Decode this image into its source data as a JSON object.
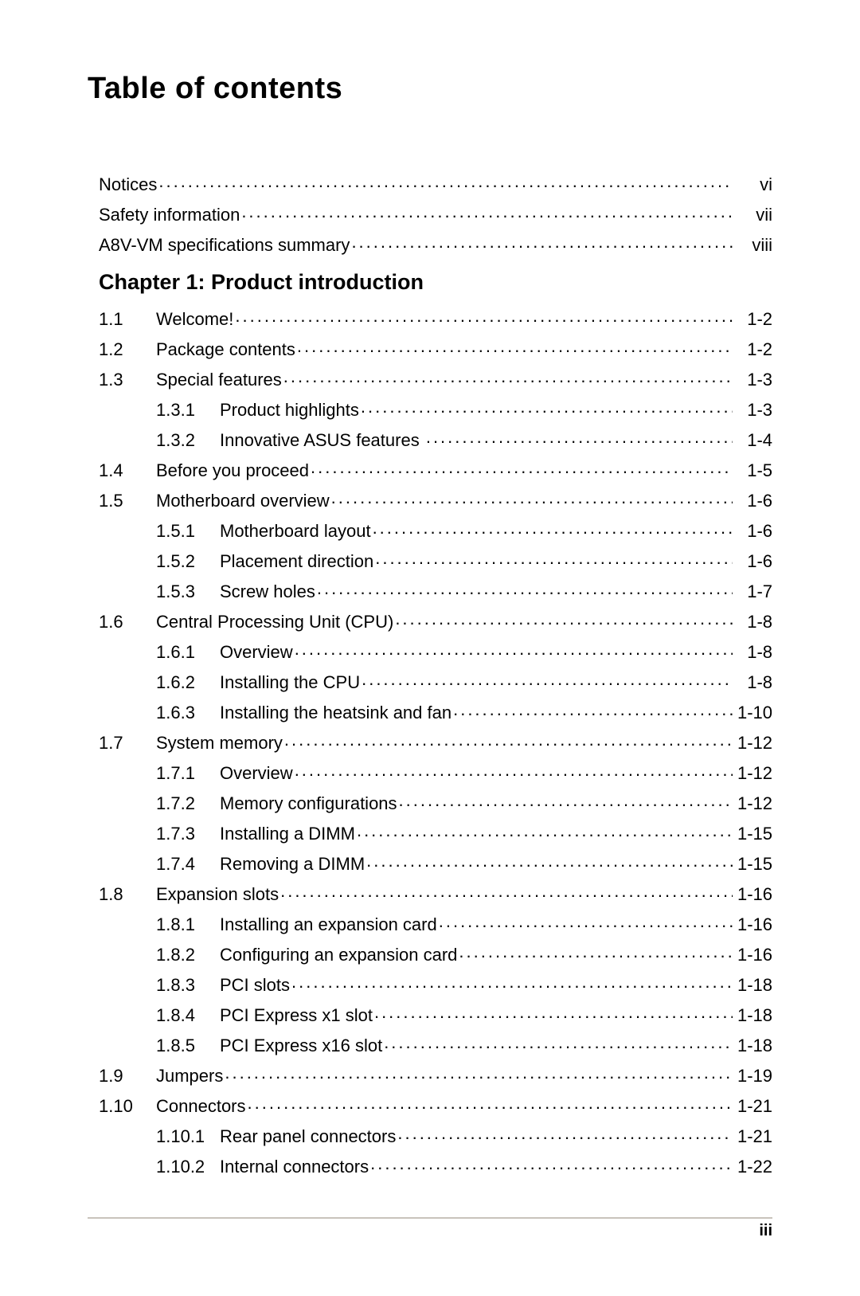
{
  "title": "Table of contents",
  "page_number": "iii",
  "colors": {
    "text": "#000000",
    "background": "#ffffff",
    "rule": "#c9c3bb"
  },
  "typography": {
    "title_fontsize_pt": 28,
    "heading_fontsize_pt": 20,
    "body_fontsize_pt": 16,
    "font_family": "Arial"
  },
  "front_matter": [
    {
      "title": "Notices",
      "page": "vi"
    },
    {
      "title": "Safety information",
      "page": "vii"
    },
    {
      "title": "A8V-VM specifications summary",
      "page": "viii"
    }
  ],
  "chapter": {
    "heading": "Chapter 1: Product introduction",
    "entries": [
      {
        "num": "1.1",
        "title": "Welcome!",
        "page": "1-2"
      },
      {
        "num": "1.2",
        "title": "Package contents",
        "page": "1-2"
      },
      {
        "num": "1.3",
        "title": "Special features",
        "page": "1-3",
        "children": [
          {
            "num": "1.3.1",
            "title": "Product highlights",
            "page": "1-3"
          },
          {
            "num": "1.3.2",
            "title": "Innovative ASUS features",
            "page": "1-4",
            "trailing_space": true
          }
        ]
      },
      {
        "num": "1.4",
        "title": "Before you proceed",
        "page": "1-5"
      },
      {
        "num": "1.5",
        "title": "Motherboard overview",
        "page": "1-6",
        "children": [
          {
            "num": "1.5.1",
            "title": "Motherboard layout",
            "page": "1-6"
          },
          {
            "num": "1.5.2",
            "title": "Placement direction",
            "page": "1-6"
          },
          {
            "num": "1.5.3",
            "title": "Screw holes",
            "page": "1-7"
          }
        ]
      },
      {
        "num": "1.6",
        "title": "Central Processing Unit (CPU)",
        "page": "1-8",
        "children": [
          {
            "num": "1.6.1",
            "title": "Overview",
            "page": "1-8"
          },
          {
            "num": "1.6.2",
            "title": "Installing the CPU",
            "page": "1-8"
          },
          {
            "num": "1.6.3",
            "title": "Installing the heatsink and fan",
            "page": "1-10"
          }
        ]
      },
      {
        "num": "1.7",
        "title": "System memory",
        "page": "1-12",
        "children": [
          {
            "num": "1.7.1",
            "title": "Overview",
            "page": "1-12"
          },
          {
            "num": "1.7.2",
            "title": "Memory configurations",
            "page": "1-12"
          },
          {
            "num": "1.7.3",
            "title": "Installing a DIMM",
            "page": "1-15"
          },
          {
            "num": "1.7.4",
            "title": "Removing a DIMM",
            "page": "1-15"
          }
        ]
      },
      {
        "num": "1.8",
        "title": "Expansion slots",
        "page": "1-16",
        "children": [
          {
            "num": "1.8.1",
            "title": "Installing an expansion card",
            "page": "1-16"
          },
          {
            "num": "1.8.2",
            "title": "Configuring an expansion card",
            "page": "1-16"
          },
          {
            "num": "1.8.3",
            "title": "PCI slots",
            "page": "1-18"
          },
          {
            "num": "1.8.4",
            "title": "PCI Express x1 slot",
            "page": "1-18"
          },
          {
            "num": "1.8.5",
            "title": "PCI Express x16 slot",
            "page": "1-18"
          }
        ]
      },
      {
        "num": "1.9",
        "title": "Jumpers",
        "page": "1-19"
      },
      {
        "num": "1.10",
        "title": "Connectors",
        "page": "1-21",
        "children": [
          {
            "num": "1.10.1",
            "title": "Rear panel connectors",
            "page": "1-21"
          },
          {
            "num": "1.10.2",
            "title": "Internal connectors",
            "page": "1-22"
          }
        ]
      }
    ]
  }
}
